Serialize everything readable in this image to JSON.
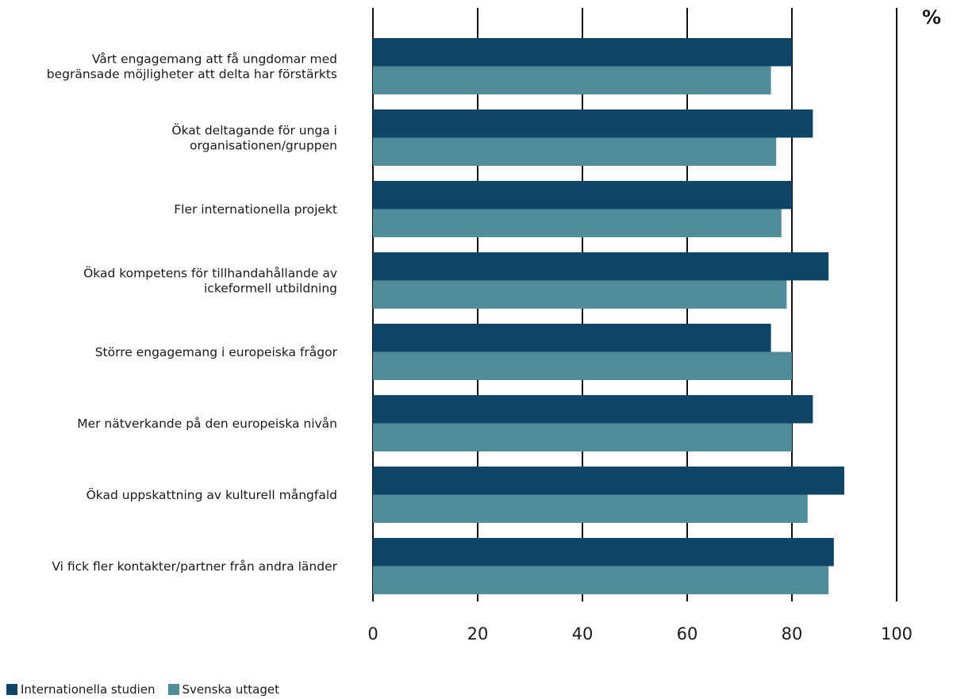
{
  "chart_data": {
    "type": "bar",
    "orientation": "horizontal",
    "unit": "%",
    "categories": [
      [
        "Vårt engagemang att få ungdomar med",
        "begränsade möjligheter att delta har förstärkts"
      ],
      [
        "Ökat deltagande för unga i",
        "organisationen/gruppen"
      ],
      [
        "Fler internationella projekt"
      ],
      [
        "Ökad kompetens för tillhandahållande av",
        "ickeformell utbildning"
      ],
      [
        "Större engagemang i europeiska frågor"
      ],
      [
        "Mer nätverkande på den europeiska nivån"
      ],
      [
        "Ökad uppskattning av kulturell mångfald"
      ],
      [
        "Vi fick fler kontakter/partner från andra länder"
      ]
    ],
    "series": [
      {
        "name": "Internationella studien",
        "color": "#104568",
        "values": [
          80,
          84,
          80,
          87,
          76,
          84,
          90,
          88
        ]
      },
      {
        "name": "Svenska uttaget",
        "color": "#518c9d",
        "values": [
          76,
          77,
          78,
          79,
          80,
          80,
          83,
          87
        ]
      }
    ],
    "xlim": [
      0,
      100
    ],
    "xticks": [
      "0",
      "20",
      "40",
      "60",
      "80",
      "100"
    ],
    "grid": true,
    "legend_position": "bottom-left"
  }
}
